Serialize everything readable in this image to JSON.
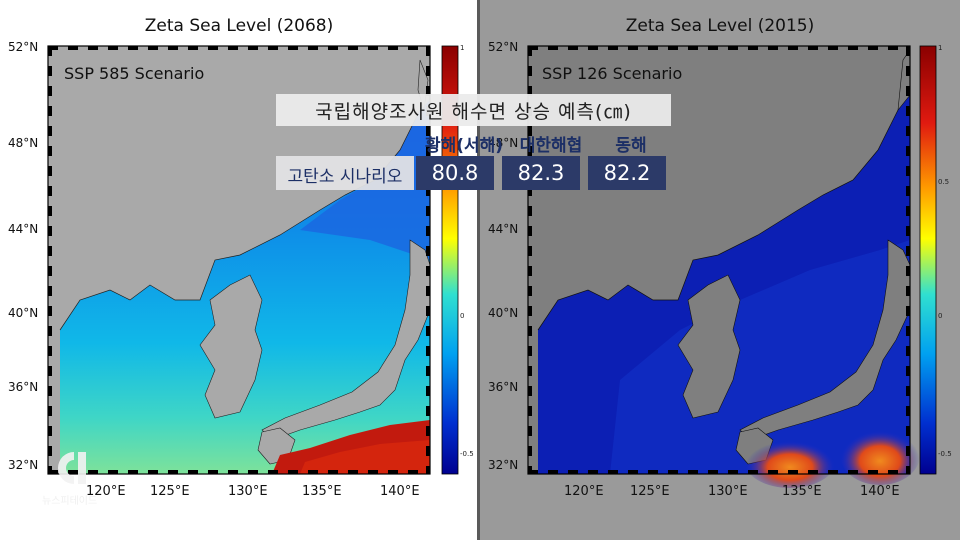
{
  "left_panel": {
    "title": "Zeta Sea Level (2068)",
    "scenario": "SSP 585 Scenario",
    "lat_labels": [
      "52°N",
      "48°N",
      "44°N",
      "40°N",
      "36°N",
      "32°N"
    ],
    "lon_labels": [
      "120°E",
      "125°E",
      "130°E",
      "135°E",
      "140°E"
    ],
    "colorbar_ticks": [
      "1",
      "0",
      "-0.5"
    ]
  },
  "right_panel": {
    "title": "Zeta Sea Level (2015)",
    "scenario": "SSP 126 Scenario",
    "lat_labels": [
      "52°N",
      "48°N",
      "44°N",
      "40°N",
      "36°N",
      "32°N"
    ],
    "lon_labels": [
      "120°E",
      "125°E",
      "130°E",
      "135°E",
      "140°E"
    ],
    "colorbar_ticks": [
      "1",
      "0.5",
      "0",
      "-0.5"
    ]
  },
  "info_box": {
    "title": "국립해양조사원 해수면 상승 예측(㎝)",
    "headers": [
      "황해(서해)",
      "대한해협",
      "동해"
    ],
    "row_label": "고탄소 시나리오",
    "values": [
      "80.8",
      "82.3",
      "82.2"
    ]
  },
  "logo": {
    "text": "뉴스피테이드"
  },
  "colors": {
    "land": "#a9a9a9",
    "high": "#c21a0e",
    "low": "#0a1fb0",
    "navy": "#2c3a68"
  }
}
